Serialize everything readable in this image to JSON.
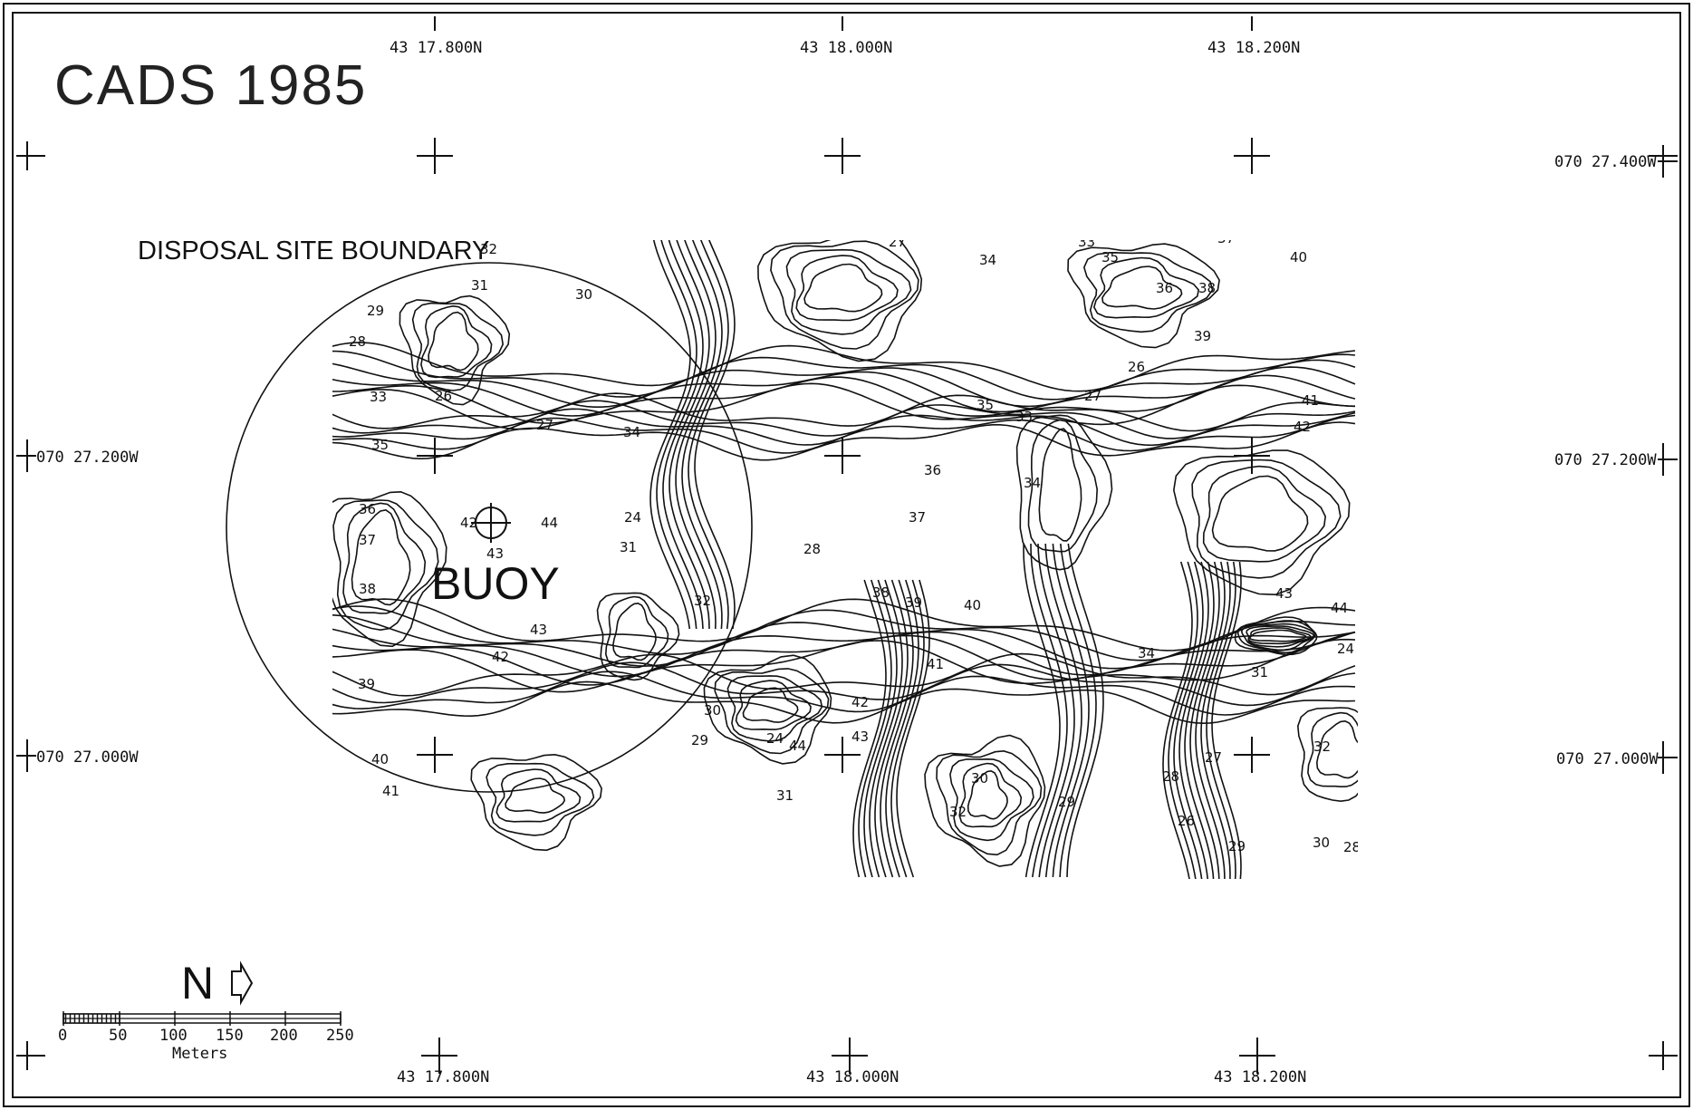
{
  "map": {
    "title": "CADS 1985",
    "site_label": "DISPOSAL SITE BOUNDARY",
    "buoy_label": "BUOY",
    "buoy_depth": "42",
    "buoy_inner_depth": "43",
    "north_label": "N",
    "top_coords": [
      "43 17.800N",
      "43 18.000N",
      "43 18.200N"
    ],
    "bottom_coords": [
      "43 17.800N",
      "43 18.000N",
      "43 18.200N"
    ],
    "right_coords": [
      "070 27.400W",
      "070 27.200W",
      "070 27.000W"
    ],
    "left_coords": [
      "070 27.200W",
      "070 27.000W"
    ],
    "scale": {
      "ticks": [
        "0",
        "50",
        "100",
        "150",
        "200",
        "250"
      ],
      "unit": "Meters"
    },
    "contour_labels": [
      "31",
      "32",
      "30",
      "29",
      "28",
      "26",
      "27",
      "34",
      "33",
      "35",
      "36",
      "37",
      "38",
      "39",
      "40",
      "41",
      "42",
      "43",
      "44",
      "24"
    ],
    "colors": {
      "ink": "#111111",
      "background": "#ffffff"
    }
  }
}
